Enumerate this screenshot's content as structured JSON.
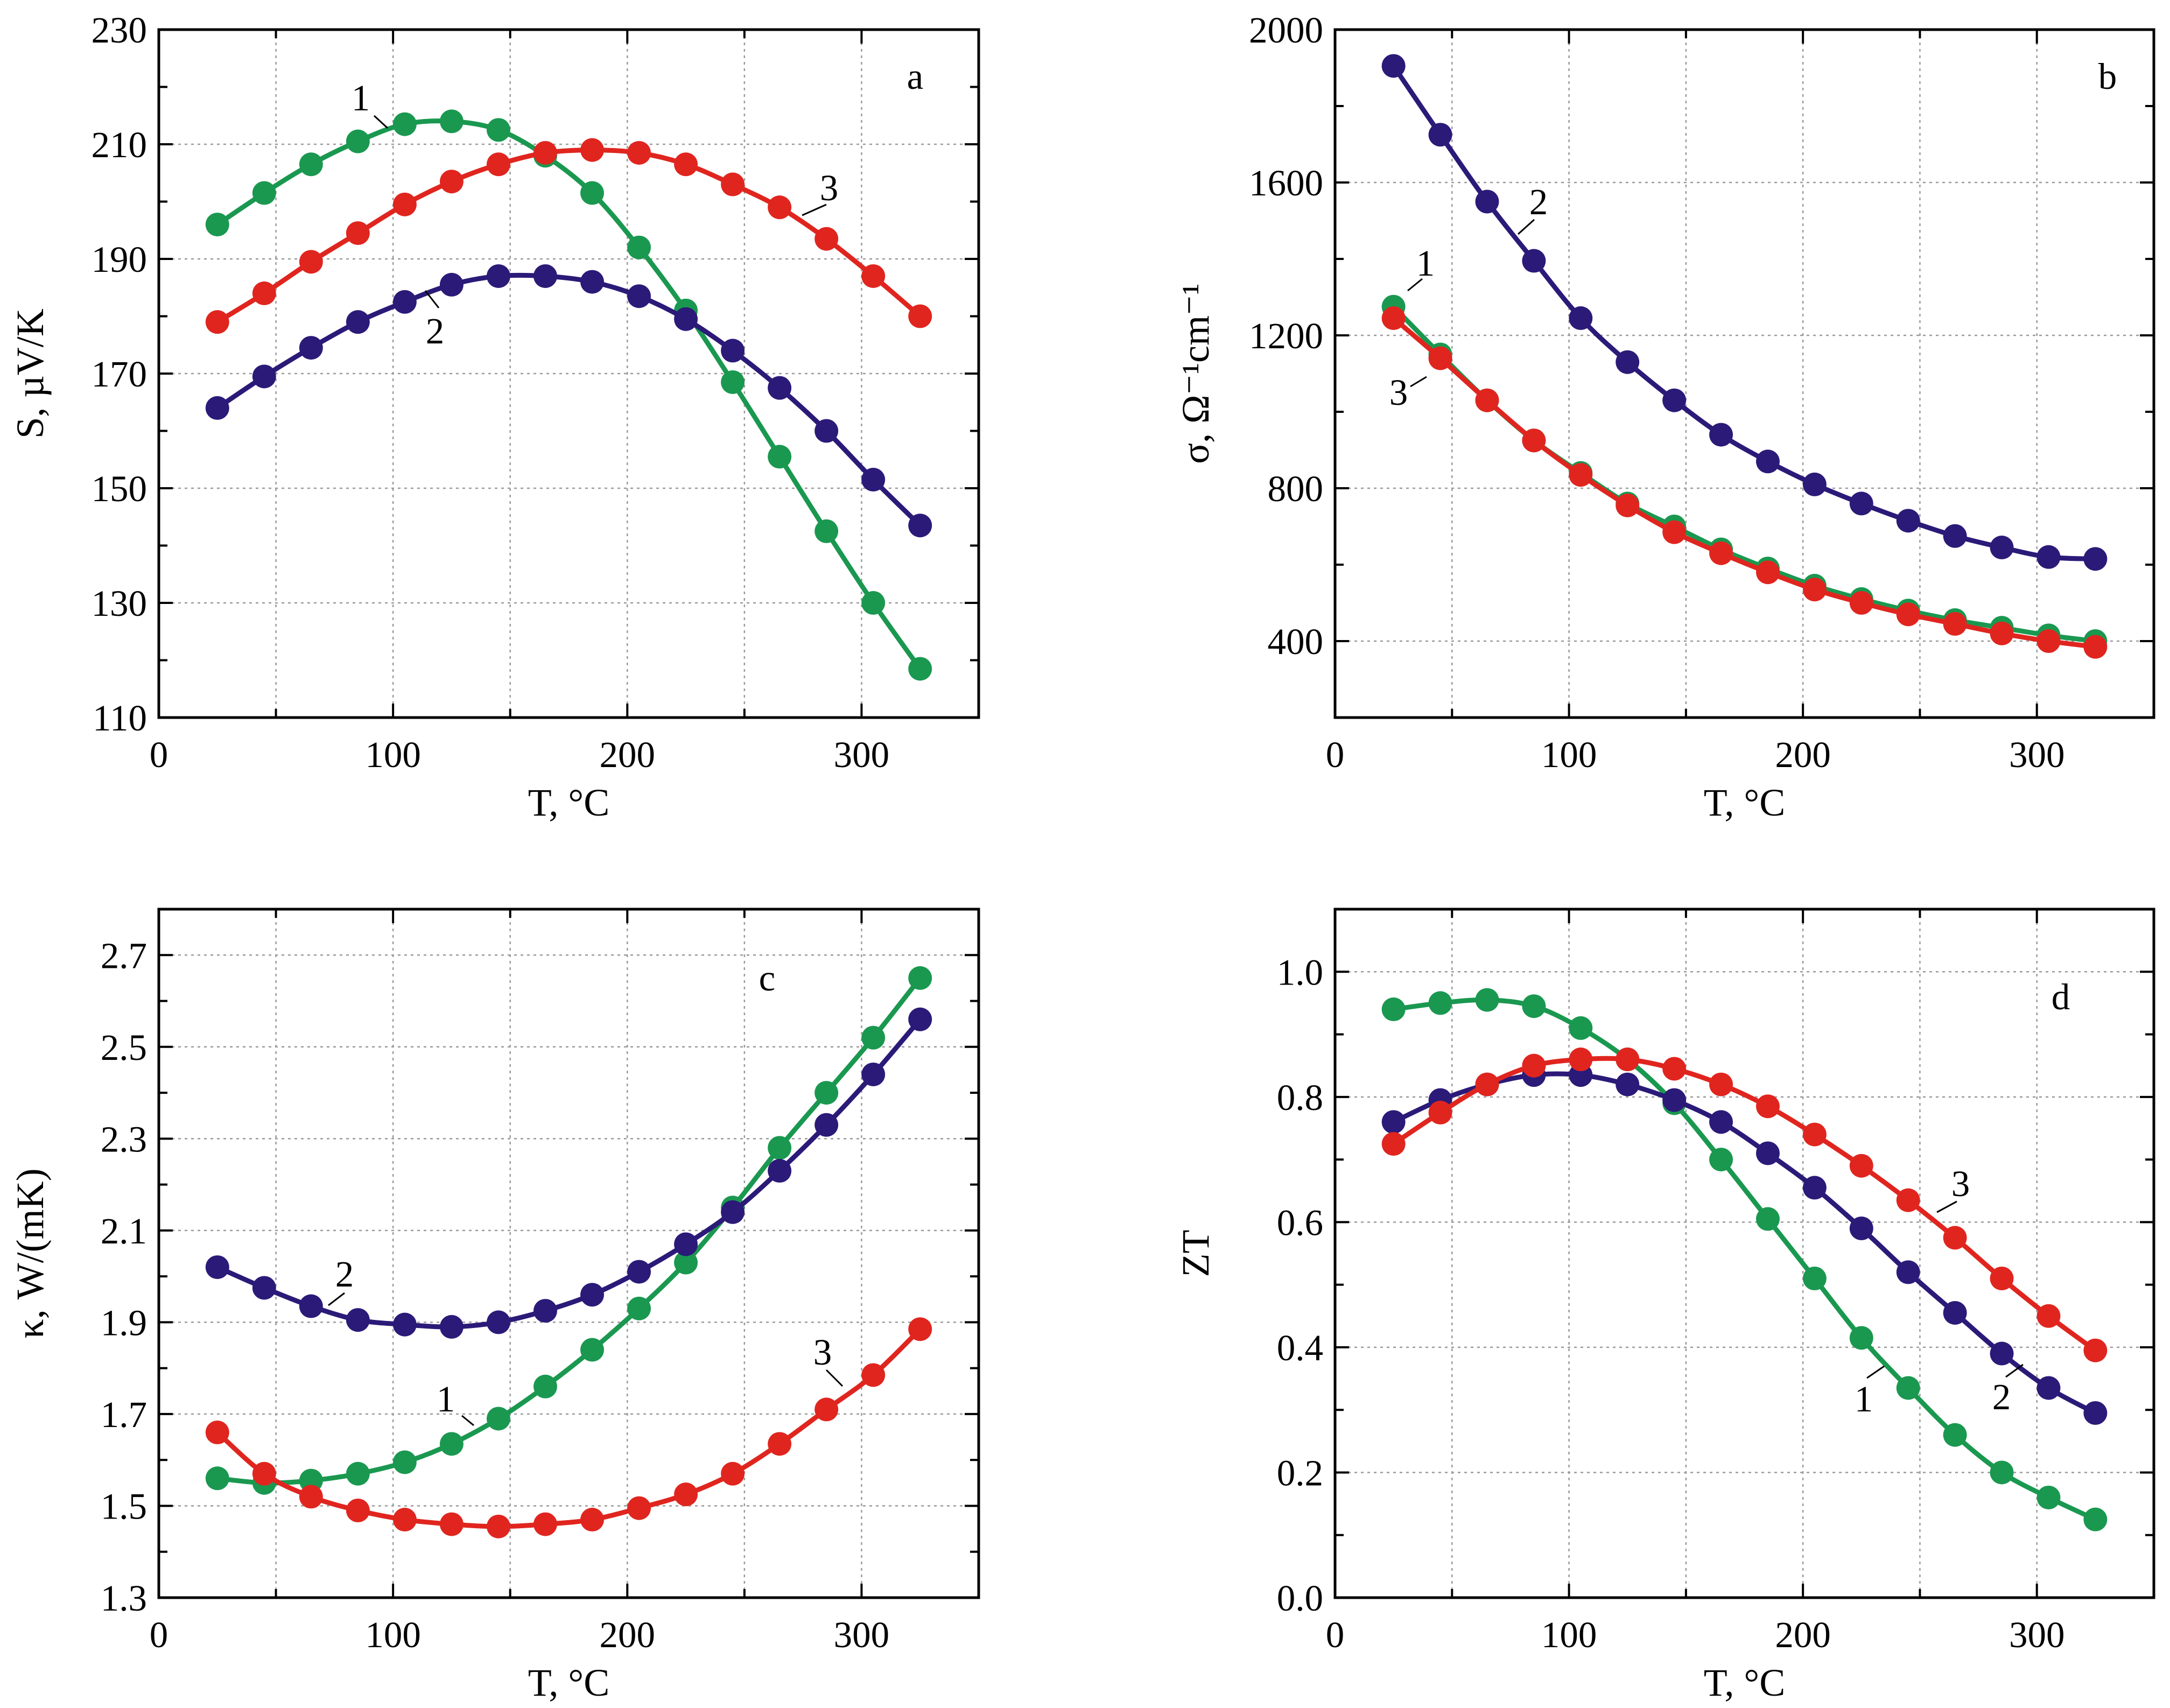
{
  "chart_data": [
    {
      "panel": "a",
      "type": "line",
      "xlabel": "T, °C",
      "ylabel": "S, µV/K",
      "xlim": [
        0,
        350
      ],
      "ylim": [
        110,
        230
      ],
      "xticks": [
        0,
        100,
        200,
        300
      ],
      "yticks": [
        110,
        130,
        150,
        170,
        190,
        210,
        230
      ],
      "series": [
        {
          "name": "1",
          "color": "#1a9850",
          "x": [
            25,
            45,
            65,
            85,
            105,
            125,
            145,
            165,
            185,
            205,
            225,
            245,
            265,
            285,
            305,
            325
          ],
          "values": [
            196,
            201.5,
            206.5,
            210.5,
            213.5,
            214,
            212.5,
            208,
            201.5,
            192,
            181,
            168.5,
            155.5,
            142.5,
            130,
            118.5
          ]
        },
        {
          "name": "2",
          "color": "#2b1a78",
          "x": [
            25,
            45,
            65,
            85,
            105,
            125,
            145,
            165,
            185,
            205,
            225,
            245,
            265,
            285,
            305,
            325
          ],
          "values": [
            164,
            169.5,
            174.5,
            179,
            182.5,
            185.5,
            187,
            187,
            186,
            183.5,
            179.5,
            174,
            167.5,
            160,
            151.5,
            143.5
          ]
        },
        {
          "name": "3",
          "color": "#e0251f",
          "x": [
            25,
            45,
            65,
            85,
            105,
            125,
            145,
            165,
            185,
            205,
            225,
            245,
            265,
            285,
            305,
            325
          ],
          "values": [
            179,
            184,
            189.5,
            194.5,
            199.5,
            203.5,
            206.5,
            208.5,
            209,
            208.5,
            206.5,
            203,
            199,
            193.5,
            187,
            180
          ]
        }
      ]
    },
    {
      "panel": "b",
      "type": "line",
      "xlabel": "T, °C",
      "ylabel": "σ, Ω⁻¹cm⁻¹",
      "xlim": [
        0,
        350
      ],
      "ylim": [
        200,
        2000
      ],
      "xticks": [
        0,
        100,
        200,
        300
      ],
      "yticks": [
        400,
        800,
        1200,
        1600,
        2000
      ],
      "series": [
        {
          "name": "1",
          "color": "#1a9850",
          "x": [
            25,
            45,
            65,
            85,
            105,
            125,
            145,
            165,
            185,
            205,
            225,
            245,
            265,
            285,
            305,
            325
          ],
          "values": [
            1275,
            1150,
            1030,
            925,
            840,
            760,
            700,
            640,
            590,
            545,
            510,
            480,
            455,
            435,
            415,
            400
          ]
        },
        {
          "name": "2",
          "color": "#2b1a78",
          "x": [
            25,
            45,
            65,
            85,
            105,
            125,
            145,
            165,
            185,
            205,
            225,
            245,
            265,
            285,
            305,
            325
          ],
          "values": [
            1905,
            1725,
            1550,
            1395,
            1245,
            1130,
            1030,
            940,
            870,
            810,
            760,
            715,
            675,
            645,
            620,
            615
          ]
        },
        {
          "name": "3",
          "color": "#e0251f",
          "x": [
            25,
            45,
            65,
            85,
            105,
            125,
            145,
            165,
            185,
            205,
            225,
            245,
            265,
            285,
            305,
            325
          ],
          "values": [
            1245,
            1140,
            1030,
            925,
            835,
            755,
            685,
            630,
            580,
            535,
            500,
            470,
            445,
            420,
            400,
            385
          ]
        }
      ]
    },
    {
      "panel": "c",
      "type": "line",
      "xlabel": "T, °C",
      "ylabel": "κ, W/(mK)",
      "xlim": [
        0,
        350
      ],
      "ylim": [
        1.3,
        2.8
      ],
      "xticks": [
        0,
        100,
        200,
        300
      ],
      "yticks": [
        1.3,
        1.5,
        1.7,
        1.9,
        2.1,
        2.3,
        2.5,
        2.7
      ],
      "series": [
        {
          "name": "1",
          "color": "#1a9850",
          "x": [
            25,
            45,
            65,
            85,
            105,
            125,
            145,
            165,
            185,
            205,
            225,
            245,
            265,
            285,
            305,
            325
          ],
          "values": [
            1.56,
            1.55,
            1.555,
            1.57,
            1.595,
            1.635,
            1.69,
            1.76,
            1.84,
            1.93,
            2.03,
            2.15,
            2.28,
            2.4,
            2.52,
            2.65
          ]
        },
        {
          "name": "2",
          "color": "#2b1a78",
          "x": [
            25,
            45,
            65,
            85,
            105,
            125,
            145,
            165,
            185,
            205,
            225,
            245,
            265,
            285,
            305,
            325
          ],
          "values": [
            2.02,
            1.975,
            1.935,
            1.905,
            1.895,
            1.89,
            1.9,
            1.925,
            1.96,
            2.01,
            2.07,
            2.14,
            2.23,
            2.33,
            2.44,
            2.56
          ]
        },
        {
          "name": "3",
          "color": "#e0251f",
          "x": [
            25,
            45,
            65,
            85,
            105,
            125,
            145,
            165,
            185,
            205,
            225,
            245,
            265,
            285,
            305,
            325
          ],
          "values": [
            1.66,
            1.57,
            1.52,
            1.49,
            1.47,
            1.46,
            1.455,
            1.46,
            1.47,
            1.495,
            1.525,
            1.57,
            1.635,
            1.71,
            1.785,
            1.885
          ]
        }
      ]
    },
    {
      "panel": "d",
      "type": "line",
      "xlabel": "T, °C",
      "ylabel": "ZT",
      "xlim": [
        0,
        350
      ],
      "ylim": [
        0.0,
        1.1
      ],
      "xticks": [
        0,
        100,
        200,
        300
      ],
      "yticks": [
        0.0,
        0.2,
        0.4,
        0.6,
        0.8,
        1.0
      ],
      "series": [
        {
          "name": "1",
          "color": "#1a9850",
          "x": [
            25,
            45,
            65,
            85,
            105,
            125,
            145,
            165,
            185,
            205,
            225,
            245,
            265,
            285,
            305,
            325
          ],
          "values": [
            0.94,
            0.95,
            0.955,
            0.945,
            0.91,
            0.86,
            0.79,
            0.7,
            0.605,
            0.51,
            0.415,
            0.335,
            0.26,
            0.2,
            0.16,
            0.125
          ]
        },
        {
          "name": "2",
          "color": "#2b1a78",
          "x": [
            25,
            45,
            65,
            85,
            105,
            125,
            145,
            165,
            185,
            205,
            225,
            245,
            265,
            285,
            305,
            325
          ],
          "values": [
            0.76,
            0.795,
            0.82,
            0.835,
            0.835,
            0.82,
            0.795,
            0.76,
            0.71,
            0.655,
            0.59,
            0.52,
            0.455,
            0.39,
            0.335,
            0.295
          ]
        },
        {
          "name": "3",
          "color": "#e0251f",
          "x": [
            25,
            45,
            65,
            85,
            105,
            125,
            145,
            165,
            185,
            205,
            225,
            245,
            265,
            285,
            305,
            325
          ],
          "values": [
            0.725,
            0.775,
            0.82,
            0.85,
            0.86,
            0.86,
            0.845,
            0.82,
            0.785,
            0.74,
            0.69,
            0.635,
            0.575,
            0.51,
            0.45,
            0.395
          ]
        }
      ]
    }
  ]
}
